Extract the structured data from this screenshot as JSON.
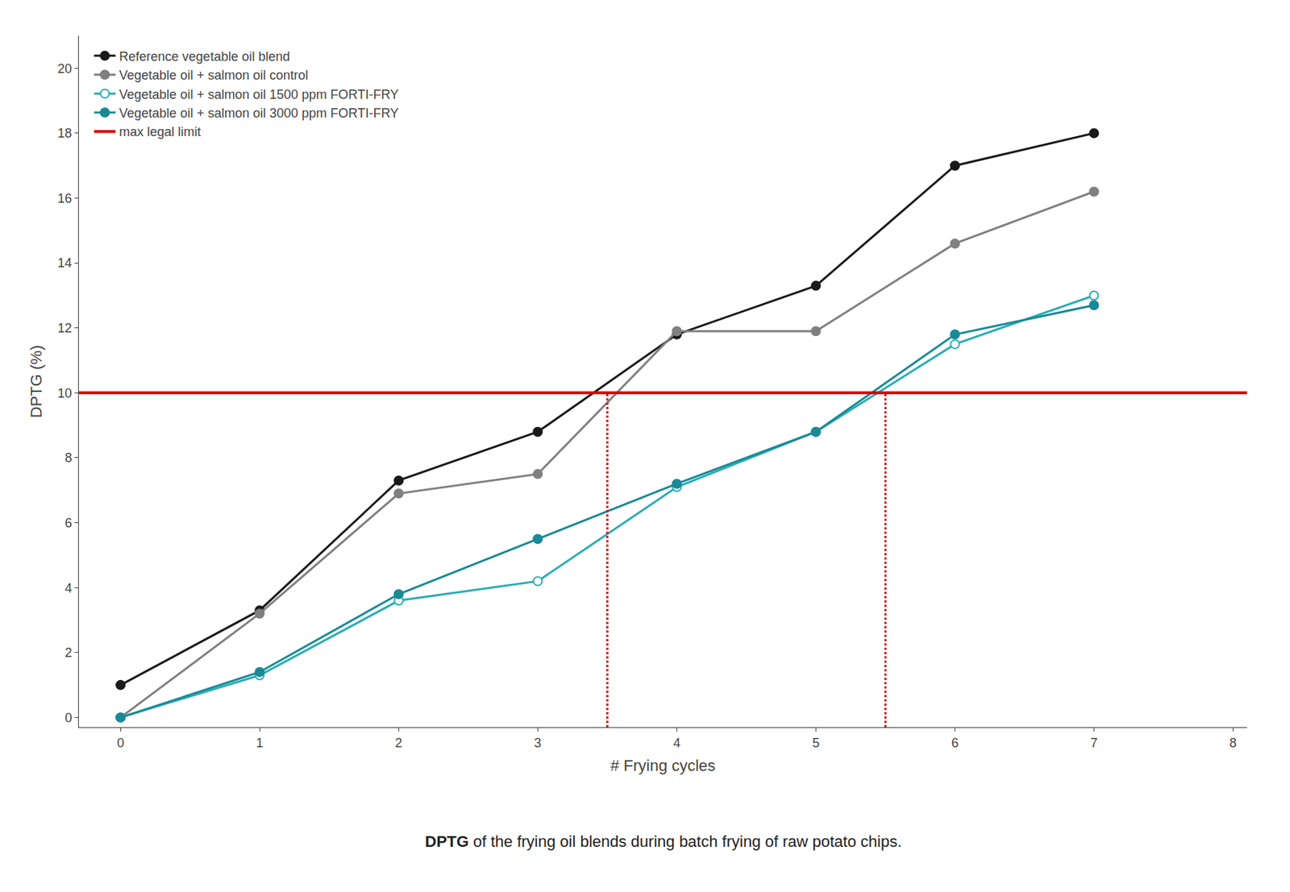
{
  "chart_data": {
    "type": "line",
    "x": [
      0,
      1,
      2,
      3,
      4,
      5,
      6,
      7
    ],
    "series": [
      {
        "name": "Reference vegetable oil blend",
        "color": "#1a1a1a",
        "marker": "circle",
        "values": [
          1.0,
          3.3,
          7.3,
          8.8,
          11.8,
          13.3,
          17.0,
          18.0
        ]
      },
      {
        "name": "Vegetable oil + salmon oil control",
        "color": "#808080",
        "marker": "circle",
        "values": [
          0.0,
          3.2,
          6.9,
          7.5,
          11.9,
          11.9,
          14.6,
          16.2
        ]
      },
      {
        "name": "Vegetable oil + salmon oil 1500 ppm FORTI-FRY",
        "color": "#29adb8",
        "marker": "circle-open",
        "values": [
          0.0,
          1.3,
          3.6,
          4.2,
          7.1,
          8.8,
          11.5,
          13.0
        ]
      },
      {
        "name": "Vegetable oil + salmon oil 3000 ppm FORTI-FRY",
        "color": "#1a8a96",
        "marker": "circle",
        "values": [
          0.0,
          1.4,
          3.8,
          5.5,
          7.2,
          8.8,
          11.8,
          12.7
        ]
      }
    ],
    "hline": {
      "name": "max legal limit",
      "value": 10.0,
      "color": "#dd0000"
    },
    "vlines": {
      "x": [
        3.5,
        5.5
      ],
      "color": "#dd0000",
      "line_style": "dotted"
    },
    "x_label": "# Frying cycles",
    "y_label": "DPTG (%)",
    "xlim": [
      -0.3,
      8.1
    ],
    "ylim": [
      -0.3,
      21
    ],
    "xticks": [
      0,
      1,
      2,
      3,
      4,
      5,
      6,
      7,
      8
    ],
    "yticks": [
      0,
      2,
      4,
      6,
      8,
      10,
      12,
      14,
      16,
      18,
      20
    ],
    "annotations": [
      "DPTG of the frying oil blends during batch frying of raw potato chips."
    ],
    "grid": false,
    "legend": "upper left"
  }
}
